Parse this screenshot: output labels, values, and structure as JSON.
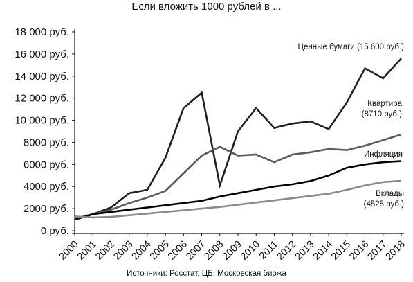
{
  "chart_data": {
    "type": "line",
    "title": "Если вложить 1000 рублей в ...",
    "source": "Источники: Росстат, ЦБ, Московская биржа",
    "x": [
      "2000",
      "2001",
      "2002",
      "2003",
      "2004",
      "2005",
      "2006",
      "2007",
      "2008",
      "2009",
      "2010",
      "2011",
      "2012",
      "2013",
      "2014",
      "2015",
      "2016",
      "2017",
      "2018"
    ],
    "ylim": [
      0,
      18000
    ],
    "yticks": [
      0,
      2000,
      4000,
      6000,
      8000,
      10000,
      12000,
      14000,
      16000,
      18000
    ],
    "ytick_labels": [
      "0 руб.",
      "2000 руб.",
      "4000 руб.",
      "6000 руб.",
      "8000 руб.",
      "10 000 руб.",
      "12 000 руб.",
      "14 000 руб.",
      "16 000 руб.",
      "18 000 руб."
    ],
    "grid": false,
    "series": [
      {
        "name": "Ценные бумаги (15 600 руб.)",
        "color": "#1f1f1f",
        "values": [
          1000,
          1500,
          2100,
          3400,
          3700,
          6600,
          11100,
          12500,
          4100,
          9000,
          11100,
          9300,
          9700,
          9900,
          9200,
          11600,
          14700,
          13800,
          15600
        ]
      },
      {
        "name": "Квартира (8710 руб.)",
        "color": "#5a5a5a",
        "values": [
          1100,
          1500,
          1900,
          2500,
          3000,
          3600,
          5200,
          6800,
          7600,
          6800,
          6900,
          6200,
          6900,
          7100,
          7400,
          7300,
          7700,
          8200,
          8710
        ]
      },
      {
        "name": "Инфляция",
        "color": "#000000",
        "values": [
          1000,
          1500,
          1700,
          1900,
          2100,
          2300,
          2500,
          2700,
          3100,
          3400,
          3700,
          4000,
          4200,
          4500,
          5000,
          5700,
          6000,
          6200,
          6300
        ]
      },
      {
        "name": "Вклады (4525 руб.)",
        "color": "#8a8a8a",
        "values": [
          1300,
          1200,
          1250,
          1400,
          1550,
          1700,
          1850,
          2000,
          2150,
          2350,
          2550,
          2750,
          2950,
          3150,
          3350,
          3700,
          4100,
          4400,
          4525
        ]
      }
    ],
    "annotations": [
      {
        "series": 0,
        "lines": [
          "Ценные бумаги (15 600 руб.)"
        ]
      },
      {
        "series": 1,
        "lines": [
          "Квартира",
          "(8710 руб.)"
        ]
      },
      {
        "series": 2,
        "lines": [
          "Инфляция"
        ]
      },
      {
        "series": 3,
        "lines": [
          "Вклады",
          "(4525 руб.)"
        ]
      }
    ]
  }
}
